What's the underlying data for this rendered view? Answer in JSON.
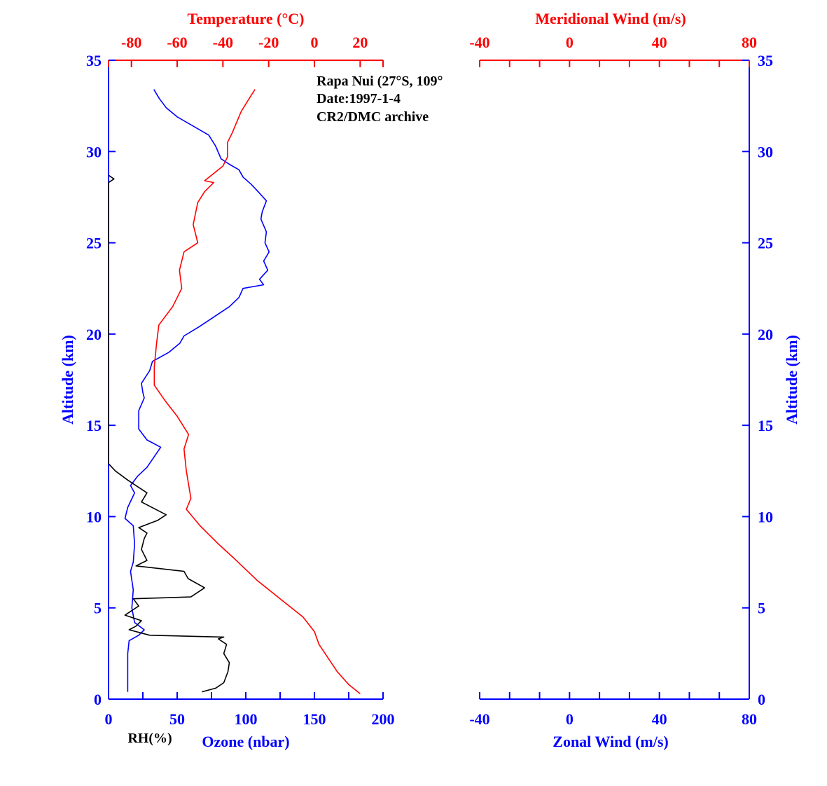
{
  "chart_data": [
    {
      "type": "line",
      "title": "",
      "annotation": {
        "lines": [
          "Rapa Nui (27°S, 109°",
          "Date:1997-1-4",
          "CR2/DMC archive"
        ]
      },
      "y_axis": {
        "label": "Altitude (km)",
        "range": [
          0,
          35
        ],
        "ticks": [
          0,
          5,
          10,
          15,
          20,
          25,
          30,
          35
        ],
        "color": "#0000ff"
      },
      "bottom_axis": {
        "label": "Ozone (nbar)",
        "secondary_label": "RH(%)",
        "range": [
          0,
          200
        ],
        "ticks": [
          0,
          50,
          100,
          150,
          200
        ],
        "color": "#0000ff"
      },
      "top_axis": {
        "label": "Temperature (°C)",
        "range": [
          -90,
          30
        ],
        "ticks": [
          -80,
          -60,
          -40,
          -20,
          0,
          20
        ],
        "color": "#ff0000"
      },
      "series": [
        {
          "key": "ozone",
          "color": "#0000ff",
          "axis": "bottom",
          "points": [
            [
              14,
              0.4
            ],
            [
              14,
              1.5
            ],
            [
              14,
              2.5
            ],
            [
              15,
              3.2
            ],
            [
              22,
              3.5
            ],
            [
              26,
              3.8
            ],
            [
              19,
              4.2
            ],
            [
              17,
              5
            ],
            [
              18,
              6
            ],
            [
              16,
              7
            ],
            [
              18,
              7.5
            ],
            [
              19,
              8.5
            ],
            [
              18,
              9.5
            ],
            [
              12,
              9.9
            ],
            [
              14,
              10.5
            ],
            [
              19,
              11.3
            ],
            [
              16,
              11.7
            ],
            [
              21,
              12.2
            ],
            [
              28,
              12.7
            ],
            [
              38,
              13.8
            ],
            [
              28,
              14.2
            ],
            [
              22,
              14.8
            ],
            [
              22,
              15.8
            ],
            [
              26,
              16.5
            ],
            [
              25,
              16.8
            ],
            [
              24,
              17.3
            ],
            [
              30,
              18
            ],
            [
              32,
              18.5
            ],
            [
              44,
              19
            ],
            [
              52,
              19.5
            ],
            [
              55,
              19.9
            ],
            [
              66,
              20.4
            ],
            [
              78,
              21
            ],
            [
              88,
              21.5
            ],
            [
              95,
              22
            ],
            [
              98,
              22.5
            ],
            [
              113,
              22.7
            ],
            [
              110,
              23
            ],
            [
              116,
              23.5
            ],
            [
              113,
              24
            ],
            [
              117,
              24.5
            ],
            [
              114,
              25
            ],
            [
              115,
              25.6
            ],
            [
              111,
              26.3
            ],
            [
              112,
              26.7
            ],
            [
              115,
              27.3
            ],
            [
              109,
              27.8
            ],
            [
              104,
              28.2
            ],
            [
              98,
              28.6
            ],
            [
              95,
              29
            ],
            [
              88,
              29.3
            ],
            [
              82,
              29.6
            ],
            [
              78,
              30.3
            ],
            [
              73,
              30.9
            ],
            [
              50,
              31.9
            ],
            [
              42,
              32.4
            ],
            [
              37,
              32.9
            ],
            [
              33,
              33.4
            ]
          ]
        },
        {
          "key": "rh",
          "color": "#000000",
          "axis": "bottom",
          "points": [
            [
              68,
              0.4
            ],
            [
              78,
              0.6
            ],
            [
              84,
              0.9
            ],
            [
              87,
              1.5
            ],
            [
              88,
              2
            ],
            [
              84,
              2.5
            ],
            [
              86,
              3
            ],
            [
              80,
              3.3
            ],
            [
              84,
              3.4
            ],
            [
              30,
              3.5
            ],
            [
              25,
              3.6
            ],
            [
              15,
              3.8
            ],
            [
              20,
              4
            ],
            [
              24,
              4.3
            ],
            [
              12,
              4.6
            ],
            [
              22,
              5.1
            ],
            [
              18,
              5.5
            ],
            [
              60,
              5.6
            ],
            [
              70,
              6.1
            ],
            [
              58,
              6.6
            ],
            [
              55,
              7
            ],
            [
              20,
              7.3
            ],
            [
              28,
              7.6
            ],
            [
              24,
              8.2
            ],
            [
              26,
              8.8
            ],
            [
              28,
              9.1
            ],
            [
              22,
              9.4
            ],
            [
              36,
              9.8
            ],
            [
              42,
              10.1
            ],
            [
              24,
              10.8
            ],
            [
              28,
              11.3
            ],
            [
              14,
              12
            ],
            [
              5,
              12.5
            ],
            [
              0,
              12.9
            ],
            [
              0,
              28.3
            ],
            [
              4,
              28.5
            ],
            [
              0,
              28.7
            ]
          ]
        },
        {
          "key": "temperature",
          "color": "#ff0000",
          "axis": "top",
          "points": [
            [
              20,
              0.3
            ],
            [
              15,
              0.8
            ],
            [
              10,
              1.5
            ],
            [
              2,
              3
            ],
            [
              0,
              3.7
            ],
            [
              -5,
              4.5
            ],
            [
              -15,
              5.5
            ],
            [
              -25,
              6.5
            ],
            [
              -35,
              7.7
            ],
            [
              -42,
              8.5
            ],
            [
              -50,
              9.5
            ],
            [
              -56,
              10.4
            ],
            [
              -54,
              11
            ],
            [
              -56,
              12.5
            ],
            [
              -57,
              13.7
            ],
            [
              -55,
              14.5
            ],
            [
              -60,
              15.5
            ],
            [
              -65,
              16.3
            ],
            [
              -70,
              17.2
            ],
            [
              -70,
              18.2
            ],
            [
              -69,
              19.5
            ],
            [
              -68,
              20.5
            ],
            [
              -62,
              21.5
            ],
            [
              -58,
              22.5
            ],
            [
              -59,
              23.5
            ],
            [
              -57,
              24.5
            ],
            [
              -51,
              25
            ],
            [
              -53,
              26
            ],
            [
              -51,
              27.2
            ],
            [
              -48,
              27.8
            ],
            [
              -44,
              28.3
            ],
            [
              -48,
              28.4
            ],
            [
              -40,
              29.2
            ],
            [
              -38,
              29.7
            ],
            [
              -38,
              30.5
            ],
            [
              -36,
              31
            ],
            [
              -32,
              32.2
            ],
            [
              -28,
              33
            ],
            [
              -26,
              33.4
            ]
          ]
        }
      ]
    },
    {
      "type": "line",
      "title": "",
      "y_axis": {
        "label": "Altitude (km)",
        "range": [
          0,
          35
        ],
        "ticks": [
          0,
          5,
          10,
          15,
          20,
          25,
          30,
          35
        ],
        "color": "#0000ff"
      },
      "bottom_axis": {
        "label": "Zonal Wind (m/s)",
        "range": [
          -40,
          80
        ],
        "ticks": [
          -40,
          0,
          40,
          80
        ],
        "color": "#0000ff"
      },
      "top_axis": {
        "label": "Meridional Wind (m/s)",
        "range": [
          -40,
          80
        ],
        "ticks": [
          -40,
          0,
          40,
          80
        ],
        "color": "#ff0000"
      },
      "series": []
    }
  ]
}
